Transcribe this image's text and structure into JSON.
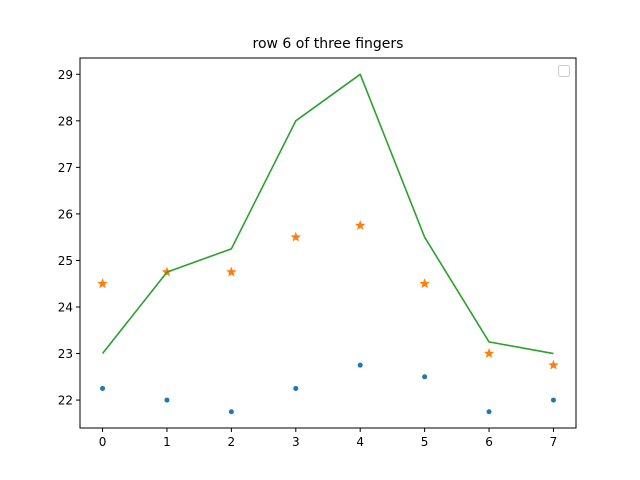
{
  "chart_data": {
    "type": "line",
    "title": "row 6 of three fingers",
    "xlabel": "",
    "ylabel": "",
    "x": [
      0,
      1,
      2,
      3,
      4,
      5,
      6,
      7
    ],
    "xticks": [
      "0",
      "1",
      "2",
      "3",
      "4",
      "5",
      "6",
      "7"
    ],
    "yticks": [
      "22",
      "23",
      "24",
      "25",
      "26",
      "27",
      "28",
      "29"
    ],
    "xlim": [
      -0.35,
      7.35
    ],
    "ylim": [
      21.4,
      29.35
    ],
    "grid": false,
    "legend": {
      "placement": "top-right",
      "entries": []
    },
    "series": [
      {
        "style": "points",
        "marker": "dot",
        "color": "#1f77b4",
        "values": [
          22.25,
          22.0,
          21.75,
          22.25,
          22.75,
          22.5,
          21.75,
          22.0
        ]
      },
      {
        "style": "points",
        "marker": "star",
        "color": "#ff7f0e",
        "values": [
          24.5,
          24.75,
          24.75,
          25.5,
          25.75,
          24.5,
          23.0,
          22.75
        ]
      },
      {
        "style": "line",
        "marker": "none",
        "color": "#2ca02c",
        "values": [
          23.0,
          24.75,
          25.25,
          28.0,
          29.0,
          25.5,
          23.25,
          23.0
        ]
      }
    ]
  }
}
